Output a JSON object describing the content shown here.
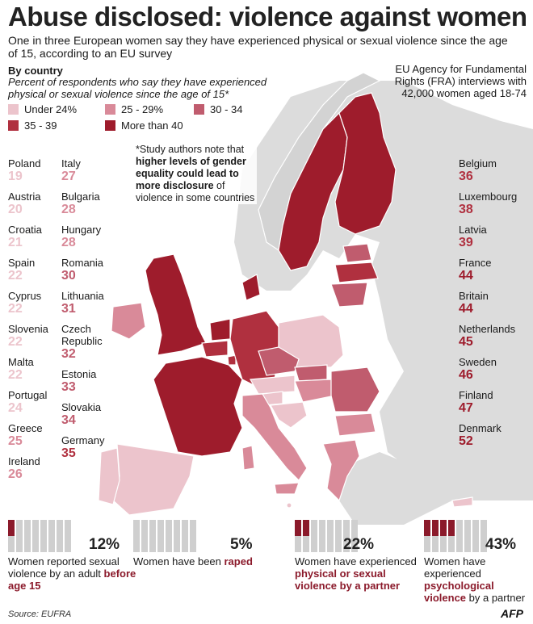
{
  "title": "Abuse disclosed: violence against women",
  "subtitle": "One in three European women say they have experienced physical or sexual violence since the age of 15, according to an EU survey",
  "by_country": {
    "heading": "By country",
    "description": "Percent of respondents who say they have experienced physical or sexual violence since the age of 15*"
  },
  "source_top": "EU Agency for Fundamental Rights (FRA) interviews with 42,000 women aged 18-74",
  "legend": [
    {
      "label": "Under 24%",
      "color": "#ecc4cc"
    },
    {
      "label": "25 - 29%",
      "color": "#d98a99"
    },
    {
      "label": "30 - 34",
      "color": "#c05c6e"
    },
    {
      "label": "35 - 39",
      "color": "#b0303f"
    },
    {
      "label": "More than 40",
      "color": "#9e1c2c"
    }
  ],
  "note": {
    "part1": "*Study authors note that ",
    "bold": "higher levels of gender equality could lead to more disclosure",
    "part2": " of violence in some countries"
  },
  "countries_left": [
    {
      "name": "Poland",
      "value": "19",
      "color": "#ecc4cc"
    },
    {
      "name": "Austria",
      "value": "20",
      "color": "#ecc4cc"
    },
    {
      "name": "Croatia",
      "value": "21",
      "color": "#ecc4cc"
    },
    {
      "name": "Spain",
      "value": "22",
      "color": "#ecc4cc"
    },
    {
      "name": "Cyprus",
      "value": "22",
      "color": "#ecc4cc"
    },
    {
      "name": "Slovenia",
      "value": "22",
      "color": "#ecc4cc"
    },
    {
      "name": "Malta",
      "value": "22",
      "color": "#ecc4cc"
    },
    {
      "name": "Portugal",
      "value": "24",
      "color": "#ecc4cc"
    },
    {
      "name": "Greece",
      "value": "25",
      "color": "#d98a99"
    },
    {
      "name": "Ireland",
      "value": "26",
      "color": "#d98a99"
    }
  ],
  "countries_mid": [
    {
      "name": "Italy",
      "value": "27",
      "color": "#d98a99"
    },
    {
      "name": "Bulgaria",
      "value": "28",
      "color": "#d98a99"
    },
    {
      "name": "Hungary",
      "value": "28",
      "color": "#d98a99"
    },
    {
      "name": "Romania",
      "value": "30",
      "color": "#c05c6e"
    },
    {
      "name": "Lithuania",
      "value": "31",
      "color": "#c05c6e"
    },
    {
      "name": "Czech Republic",
      "value": "32",
      "color": "#c05c6e"
    },
    {
      "name": "Estonia",
      "value": "33",
      "color": "#c05c6e"
    },
    {
      "name": "Slovakia",
      "value": "34",
      "color": "#c05c6e"
    },
    {
      "name": "Germany",
      "value": "35",
      "color": "#b0303f"
    }
  ],
  "countries_right": [
    {
      "name": "Belgium",
      "value": "36",
      "color": "#b0303f"
    },
    {
      "name": "Luxembourg",
      "value": "38",
      "color": "#b0303f"
    },
    {
      "name": "Latvia",
      "value": "39",
      "color": "#b0303f"
    },
    {
      "name": "France",
      "value": "44",
      "color": "#9e1c2c"
    },
    {
      "name": "Britain",
      "value": "44",
      "color": "#9e1c2c"
    },
    {
      "name": "Netherlands",
      "value": "45",
      "color": "#9e1c2c"
    },
    {
      "name": "Sweden",
      "value": "46",
      "color": "#9e1c2c"
    },
    {
      "name": "Finland",
      "value": "47",
      "color": "#9e1c2c"
    },
    {
      "name": "Denmark",
      "value": "52",
      "color": "#9e1c2c"
    }
  ],
  "stats": [
    {
      "pct": "12%",
      "filled": 1,
      "text_before": "Women reported sexual violence by an adult ",
      "highlight": "before age 15",
      "text_after": ""
    },
    {
      "pct": "5%",
      "filled": 0,
      "text_before": "Women have been ",
      "highlight": "raped",
      "text_after": ""
    },
    {
      "pct": "22%",
      "filled": 2,
      "text_before": "Women have experienced ",
      "highlight": "physical or sexual violence by a partner",
      "text_after": ""
    },
    {
      "pct": "43%",
      "filled": 4,
      "text_before": "Women have experienced ",
      "highlight": "psychological violence",
      "text_after": " by a partner"
    }
  ],
  "footer_source": "Source: EUFRA",
  "credit": "AFP",
  "colors": {
    "sea": "#ffffff",
    "land_non_eu": "#dcdcdc",
    "border": "#ffffff",
    "figure_empty": "#cfcfcf",
    "figure_filled": "#8b1a2b"
  }
}
